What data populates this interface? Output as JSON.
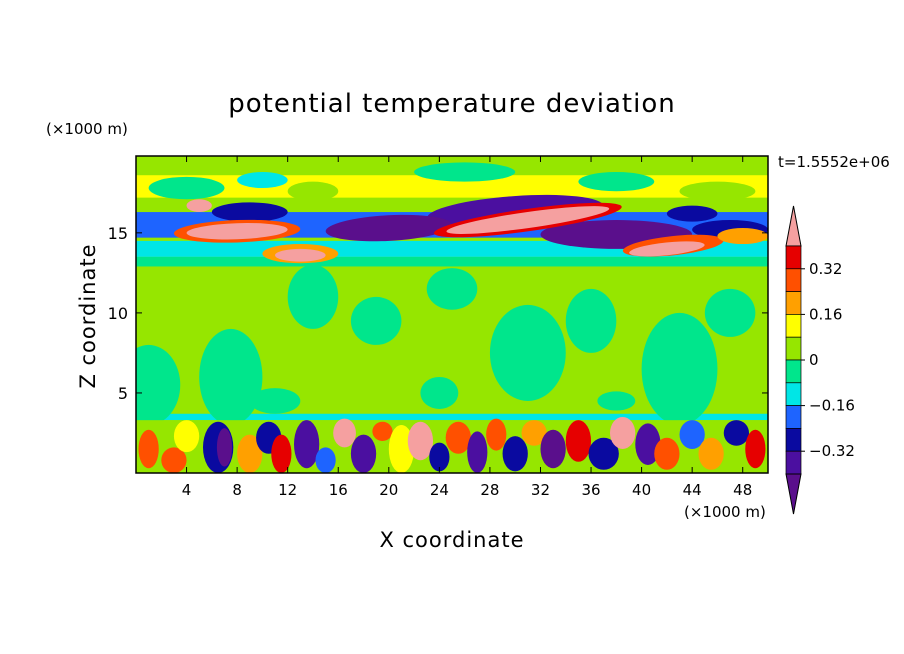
{
  "chart_data": {
    "type": "heatmap",
    "title": "potential temperature deviation",
    "xlabel": "X coordinate",
    "ylabel": "Z coordinate",
    "x_unit": "(×1000 m)",
    "y_unit": "(×1000 m)",
    "time_label": "t=1.5552e+06",
    "xlim": [
      0,
      50
    ],
    "ylim": [
      0,
      19.8
    ],
    "x_ticks": [
      4,
      8,
      12,
      16,
      20,
      24,
      28,
      32,
      36,
      40,
      44,
      48
    ],
    "y_ticks": [
      5,
      10,
      15
    ],
    "colorbar": {
      "labels": [
        "0.32",
        "0.16",
        "0",
        "-0.16",
        "-0.32"
      ],
      "levels": [
        -0.4,
        -0.32,
        -0.24,
        -0.16,
        -0.08,
        0,
        0.08,
        0.16,
        0.24,
        0.32,
        0.4
      ],
      "colors": [
        "#5a0f8c",
        "#4b0fa0",
        "#0a0aa0",
        "#1e64ff",
        "#00e6e6",
        "#00e68c",
        "#96e600",
        "#ffff00",
        "#ffa000",
        "#ff5000",
        "#e60000",
        "#f5a0a0"
      ]
    },
    "layers": [
      {
        "z": [
          0,
          3.5
        ],
        "description_value": "strong alternating positive and negative anomalies"
      },
      {
        "z": [
          3.5,
          13.2
        ],
        "description_value": "near zero, mixed 0 to +0.08"
      },
      {
        "z": [
          13.2,
          18.5
        ],
        "description_value": "strong anomalies, bands of -0.4 and +0.4"
      },
      {
        "z": [
          18.5,
          19.8
        ],
        "description_value": "near zero with yellow patches"
      }
    ]
  }
}
